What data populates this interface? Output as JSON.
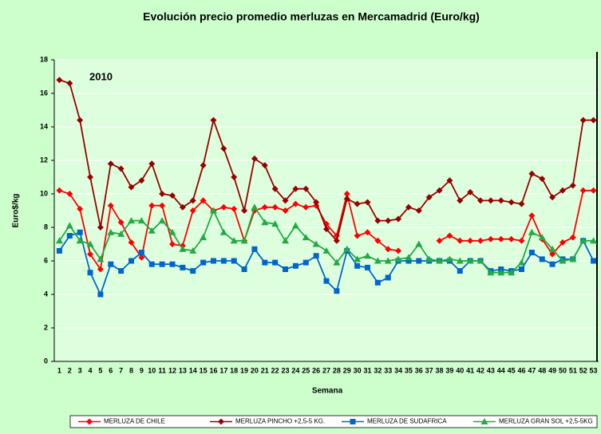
{
  "chart_data": {
    "type": "line",
    "title": "Evolución precio promedio merluzas en Mercamadrid (Euro/kg)",
    "annotation": "2010",
    "x_label": "Semana",
    "y_label": "Euro$/kg",
    "categories": [
      "1",
      "2",
      "3",
      "4",
      "5",
      "6",
      "7",
      "8",
      "9",
      "10",
      "11",
      "12",
      "13",
      "14",
      "15",
      "16",
      "17",
      "18",
      "19",
      "20",
      "21",
      "22",
      "23",
      "24",
      "25",
      "26",
      "27",
      "28",
      "29",
      "30",
      "31",
      "32",
      "33",
      "34",
      "35",
      "36",
      "37",
      "38",
      "39",
      "40",
      "41",
      "42",
      "43",
      "44",
      "45",
      "46",
      "47",
      "48",
      "49",
      "50",
      "51",
      "52",
      "53"
    ],
    "ylim": [
      0,
      18
    ],
    "yticks": [
      0,
      2,
      4,
      6,
      8,
      10,
      12,
      14,
      16,
      18
    ],
    "grid": true,
    "series": [
      {
        "name": "MERLUZA DE CHILE",
        "color": "#ff0000",
        "marker": "diamond",
        "values": [
          10.2,
          10.0,
          9.1,
          6.4,
          5.5,
          9.3,
          8.3,
          7.1,
          6.2,
          9.3,
          9.3,
          7.0,
          6.9,
          9.0,
          9.6,
          9.0,
          9.2,
          9.1,
          7.2,
          9.0,
          9.2,
          9.2,
          9.0,
          9.4,
          9.2,
          9.3,
          8.2,
          7.5,
          10.0,
          7.5,
          7.7,
          7.2,
          6.7,
          6.6,
          null,
          null,
          null,
          7.2,
          7.5,
          7.2,
          7.2,
          7.2,
          7.3,
          7.3,
          7.3,
          7.2,
          8.7,
          7.3,
          6.4,
          7.1,
          7.4,
          10.2,
          10.2
        ]
      },
      {
        "name": "MERLUZA PINCHO +2,5-5 KG.",
        "color": "#990000",
        "marker": "diamond",
        "values": [
          16.8,
          16.6,
          14.4,
          11.0,
          8.0,
          11.8,
          11.5,
          10.4,
          10.8,
          11.8,
          10.0,
          9.9,
          9.2,
          9.6,
          11.7,
          14.4,
          12.7,
          11.0,
          9.0,
          12.1,
          11.7,
          10.3,
          9.6,
          10.3,
          10.3,
          9.5,
          7.9,
          7.2,
          9.7,
          9.4,
          9.5,
          8.4,
          8.4,
          8.5,
          9.2,
          9.0,
          9.8,
          10.2,
          10.8,
          9.6,
          10.1,
          9.6,
          9.6,
          9.6,
          9.5,
          9.4,
          11.2,
          10.9,
          9.8,
          10.2,
          10.5,
          14.4,
          14.4
        ]
      },
      {
        "name": "MERLUZA DE SUDAFRICA",
        "color": "#0066cc",
        "marker": "square",
        "values": [
          6.6,
          7.5,
          7.7,
          5.3,
          4.0,
          5.8,
          5.4,
          6.0,
          6.5,
          5.8,
          5.8,
          5.8,
          5.6,
          5.4,
          5.9,
          6.0,
          6.0,
          6.0,
          5.5,
          6.7,
          5.9,
          5.9,
          5.5,
          5.7,
          5.9,
          6.3,
          4.8,
          4.2,
          6.6,
          5.7,
          5.6,
          4.7,
          5.0,
          6.0,
          6.0,
          6.0,
          6.0,
          6.0,
          6.0,
          5.4,
          6.0,
          6.0,
          5.4,
          5.5,
          5.4,
          5.5,
          6.5,
          6.1,
          5.8,
          6.1,
          6.1,
          7.2,
          6.0
        ]
      },
      {
        "name": "MERLUZA GRAN SOL +2,5-5KG",
        "color": "#22aa44",
        "marker": "triangle",
        "values": [
          7.2,
          8.1,
          7.2,
          7.0,
          6.1,
          7.7,
          7.6,
          8.4,
          8.4,
          7.8,
          8.4,
          7.7,
          6.7,
          6.6,
          7.4,
          9.0,
          7.7,
          7.2,
          7.2,
          9.2,
          8.3,
          8.2,
          7.2,
          8.1,
          7.4,
          7.0,
          6.6,
          5.9,
          6.7,
          6.1,
          6.3,
          6.0,
          6.0,
          6.1,
          6.2,
          7.0,
          6.1,
          6.0,
          6.1,
          6.0,
          6.0,
          6.0,
          5.3,
          5.3,
          5.3,
          5.9,
          7.7,
          7.4,
          6.7,
          6.0,
          6.1,
          7.2,
          7.2
        ]
      }
    ]
  }
}
